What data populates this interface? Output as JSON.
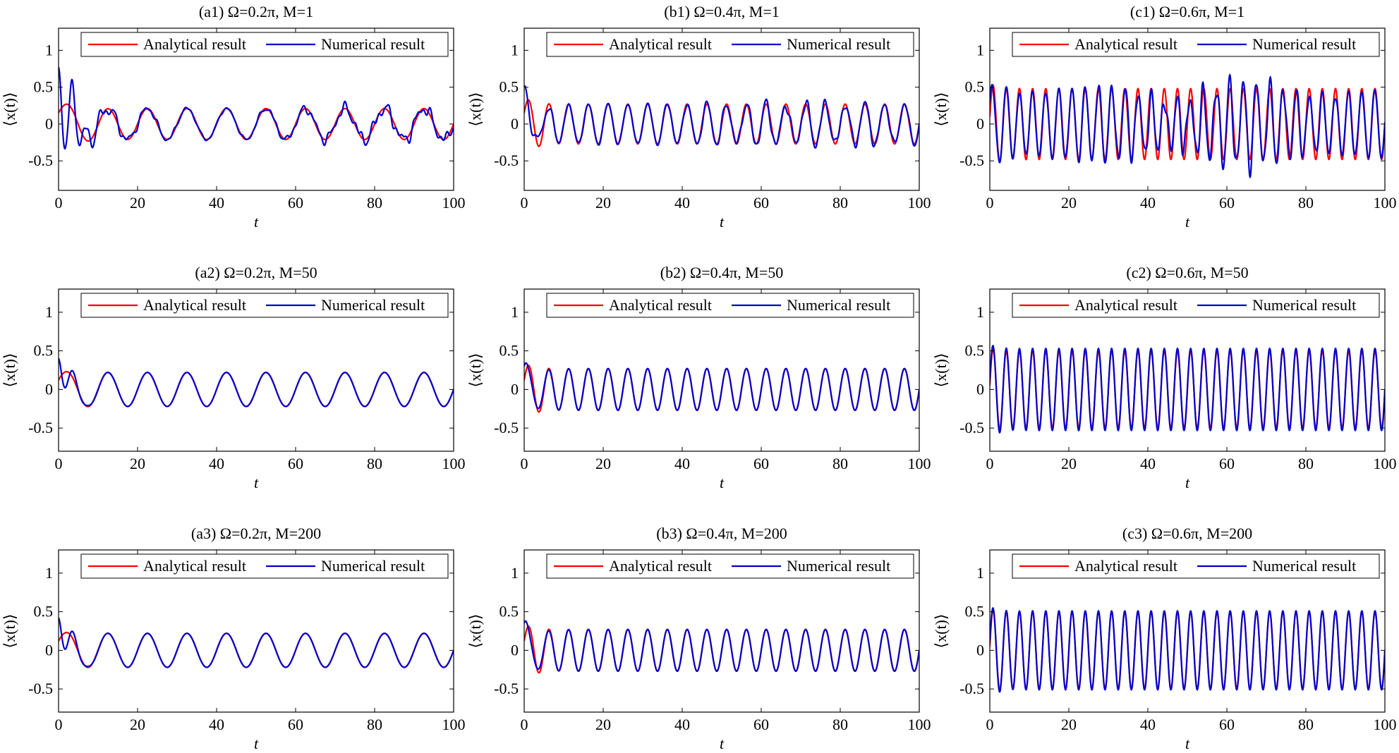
{
  "figure": {
    "legend_analytical": "Analytical result",
    "legend_numerical": "Numerical result",
    "xlabel": "t",
    "ylabel": "⟨x(t)⟩",
    "colors": {
      "analytical": "#ff0000",
      "numerical": "#0000cc",
      "axes": "#000000",
      "background": "#ffffff"
    }
  },
  "chart_data": [
    {
      "id": "a1",
      "type": "line",
      "title": "(a1) Ω=0.2π, M=1",
      "xlim": [
        0,
        100
      ],
      "ylim": [
        -0.9,
        1.3
      ],
      "xticks": [
        "0",
        "20",
        "40",
        "60",
        "80",
        "100"
      ],
      "yticks": [
        "-0.5",
        "0",
        "0.5",
        "1"
      ],
      "xlabel": "t",
      "ylabel": "⟨x(t)⟩",
      "legend": "top-right",
      "series": [
        {
          "name": "Analytical result",
          "color": "#ff0000",
          "model": {
            "amp": 0.21,
            "omega": 0.2,
            "trans_amp": 0.15,
            "trans_decay": 0.25,
            "trans_freq": 0.35
          }
        },
        {
          "name": "Numerical result",
          "color": "#0000cc",
          "model": {
            "amp": 0.21,
            "omega": 0.2,
            "trans_amp": 0.75,
            "trans_decay": 0.25,
            "trans_freq": 1.8,
            "noise_amp": 0.12
          }
        }
      ]
    },
    {
      "id": "b1",
      "type": "line",
      "title": "(b1) Ω=0.4π, M=1",
      "xlim": [
        0,
        100
      ],
      "ylim": [
        -0.9,
        1.3
      ],
      "xticks": [
        "0",
        "20",
        "40",
        "60",
        "80",
        "100"
      ],
      "yticks": [
        "-0.5",
        "0",
        "0.5",
        "1"
      ],
      "xlabel": "t",
      "ylabel": "⟨x(t)⟩",
      "legend": "top-right",
      "series": [
        {
          "name": "Analytical result",
          "color": "#ff0000",
          "model": {
            "amp": 0.27,
            "omega": 0.4,
            "trans_amp": 0.15,
            "trans_decay": 0.4,
            "trans_freq": 0.8
          }
        },
        {
          "name": "Numerical result",
          "color": "#0000cc",
          "model": {
            "amp": 0.27,
            "omega": 0.4,
            "trans_amp": 0.5,
            "trans_decay": 0.3,
            "trans_freq": 1.5,
            "noise_amp": 0.1
          }
        }
      ]
    },
    {
      "id": "c1",
      "type": "line",
      "title": "(c1) Ω=0.6π, M=1",
      "xlim": [
        0,
        100
      ],
      "ylim": [
        -0.9,
        1.3
      ],
      "xticks": [
        "0",
        "20",
        "40",
        "60",
        "80",
        "100"
      ],
      "yticks": [
        "-0.5",
        "0",
        "0.5",
        "1"
      ],
      "xlabel": "t",
      "ylabel": "⟨x(t)⟩",
      "legend": "top-right",
      "series": [
        {
          "name": "Analytical result",
          "color": "#ff0000",
          "model": {
            "amp": 0.48,
            "omega": 0.6,
            "trans_amp": 0.1,
            "trans_decay": 0.4,
            "trans_freq": 1.0
          }
        },
        {
          "name": "Numerical result",
          "color": "#0000cc",
          "model": {
            "amp": 0.45,
            "omega": 0.6,
            "trans_amp": 0.3,
            "trans_decay": 0.3,
            "trans_freq": 1.5,
            "noise_amp": 0.3
          }
        }
      ]
    },
    {
      "id": "a2",
      "type": "line",
      "title": "(a2) Ω=0.2π, M=50",
      "xlim": [
        0,
        100
      ],
      "ylim": [
        -0.8,
        1.3
      ],
      "xticks": [
        "0",
        "20",
        "40",
        "60",
        "80",
        "100"
      ],
      "yticks": [
        "-0.5",
        "0",
        "0.5",
        "1"
      ],
      "xlabel": "t",
      "ylabel": "⟨x(t)⟩",
      "legend": "top-right",
      "series": [
        {
          "name": "Analytical result",
          "color": "#ff0000",
          "model": {
            "amp": 0.22,
            "omega": 0.2,
            "trans_amp": 0.12,
            "trans_decay": 0.35,
            "trans_freq": 0.6
          }
        },
        {
          "name": "Numerical result",
          "color": "#0000cc",
          "model": {
            "amp": 0.22,
            "omega": 0.2,
            "trans_amp": 0.4,
            "trans_decay": 0.45,
            "trans_freq": 1.6
          }
        }
      ]
    },
    {
      "id": "b2",
      "type": "line",
      "title": "(b2) Ω=0.4π, M=50",
      "xlim": [
        0,
        100
      ],
      "ylim": [
        -0.8,
        1.3
      ],
      "xticks": [
        "0",
        "20",
        "40",
        "60",
        "80",
        "100"
      ],
      "yticks": [
        "-0.5",
        "0",
        "0.5",
        "1"
      ],
      "xlabel": "t",
      "ylabel": "⟨x(t)⟩",
      "legend": "top-right",
      "series": [
        {
          "name": "Analytical result",
          "color": "#ff0000",
          "model": {
            "amp": 0.27,
            "omega": 0.4,
            "trans_amp": 0.12,
            "trans_decay": 0.45,
            "trans_freq": 0.8
          }
        },
        {
          "name": "Numerical result",
          "color": "#0000cc",
          "model": {
            "amp": 0.27,
            "omega": 0.4,
            "trans_amp": 0.3,
            "trans_decay": 0.45,
            "trans_freq": 1.4
          }
        }
      ]
    },
    {
      "id": "c2",
      "type": "line",
      "title": "(c2) Ω=0.6π, M=50",
      "xlim": [
        0,
        100
      ],
      "ylim": [
        -0.8,
        1.3
      ],
      "xticks": [
        "0",
        "20",
        "40",
        "60",
        "80",
        "100"
      ],
      "yticks": [
        "-0.5",
        "0",
        "0.5",
        "1"
      ],
      "xlabel": "t",
      "ylabel": "⟨x(t)⟩",
      "legend": "top-right",
      "series": [
        {
          "name": "Analytical result",
          "color": "#ff0000",
          "model": {
            "amp": 0.5,
            "omega": 0.6,
            "trans_amp": 0.05,
            "trans_decay": 0.5,
            "trans_freq": 1.0
          }
        },
        {
          "name": "Numerical result",
          "color": "#0000cc",
          "model": {
            "amp": 0.53,
            "omega": 0.6,
            "trans_amp": 0.1,
            "trans_decay": 0.5,
            "trans_freq": 1.2
          }
        }
      ]
    },
    {
      "id": "a3",
      "type": "line",
      "title": "(a3) Ω=0.2π, M=200",
      "xlim": [
        0,
        100
      ],
      "ylim": [
        -0.8,
        1.3
      ],
      "xticks": [
        "0",
        "20",
        "40",
        "60",
        "80",
        "100"
      ],
      "yticks": [
        "-0.5",
        "0",
        "0.5",
        "1"
      ],
      "xlabel": "t",
      "ylabel": "⟨x(t)⟩",
      "legend": "top-right",
      "series": [
        {
          "name": "Analytical result",
          "color": "#ff0000",
          "model": {
            "amp": 0.22,
            "omega": 0.2,
            "trans_amp": 0.12,
            "trans_decay": 0.35,
            "trans_freq": 0.6
          }
        },
        {
          "name": "Numerical result",
          "color": "#0000cc",
          "model": {
            "amp": 0.22,
            "omega": 0.2,
            "trans_amp": 0.42,
            "trans_decay": 0.45,
            "trans_freq": 1.6
          }
        }
      ]
    },
    {
      "id": "b3",
      "type": "line",
      "title": "(b3) Ω=0.4π, M=200",
      "xlim": [
        0,
        100
      ],
      "ylim": [
        -0.8,
        1.3
      ],
      "xticks": [
        "0",
        "20",
        "40",
        "60",
        "80",
        "100"
      ],
      "yticks": [
        "-0.5",
        "0",
        "0.5",
        "1"
      ],
      "xlabel": "t",
      "ylabel": "⟨x(t)⟩",
      "legend": "top-right",
      "series": [
        {
          "name": "Analytical result",
          "color": "#ff0000",
          "model": {
            "amp": 0.27,
            "omega": 0.4,
            "trans_amp": 0.12,
            "trans_decay": 0.45,
            "trans_freq": 0.8
          }
        },
        {
          "name": "Numerical result",
          "color": "#0000cc",
          "model": {
            "amp": 0.27,
            "omega": 0.4,
            "trans_amp": 0.35,
            "trans_decay": 0.45,
            "trans_freq": 1.4
          }
        }
      ]
    },
    {
      "id": "c3",
      "type": "line",
      "title": "(c3) Ω=0.6π, M=200",
      "xlim": [
        0,
        100
      ],
      "ylim": [
        -0.8,
        1.3
      ],
      "xticks": [
        "0",
        "20",
        "40",
        "60",
        "80",
        "100"
      ],
      "yticks": [
        "-0.5",
        "0",
        "0.5",
        "1"
      ],
      "xlabel": "t",
      "ylabel": "⟨x(t)⟩",
      "legend": "top-right",
      "series": [
        {
          "name": "Analytical result",
          "color": "#ff0000",
          "model": {
            "amp": 0.5,
            "omega": 0.6,
            "trans_amp": 0.05,
            "trans_decay": 0.5,
            "trans_freq": 1.0
          }
        },
        {
          "name": "Numerical result",
          "color": "#0000cc",
          "model": {
            "amp": 0.51,
            "omega": 0.6,
            "trans_amp": 0.1,
            "trans_decay": 0.5,
            "trans_freq": 1.2
          }
        }
      ]
    }
  ]
}
